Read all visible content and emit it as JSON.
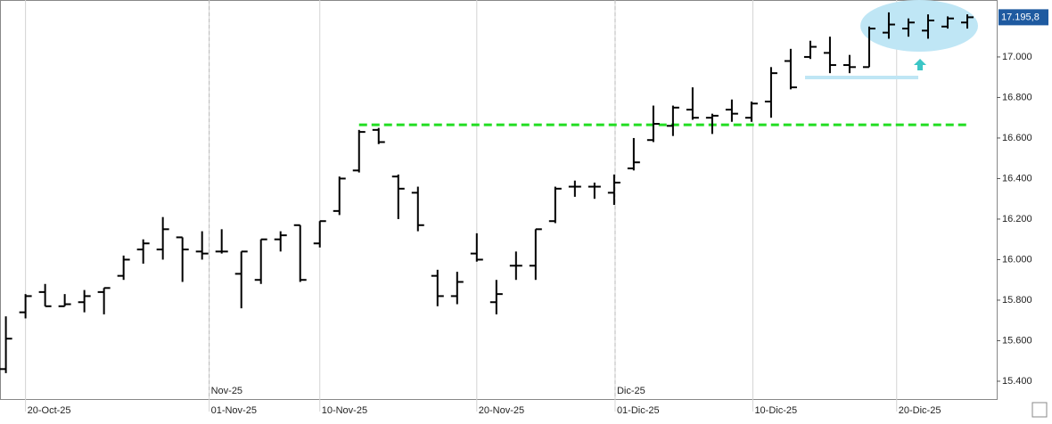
{
  "chart_data": {
    "type": "ohlc",
    "x": [
      0,
      1,
      2,
      3,
      4,
      5,
      6,
      7,
      8,
      9,
      10,
      11,
      12,
      13,
      14,
      15,
      16,
      17,
      18,
      19,
      20,
      21,
      22,
      23,
      24,
      25,
      26,
      27,
      28,
      29,
      30,
      31,
      32,
      33,
      34,
      35,
      36,
      37,
      38,
      39,
      40,
      41,
      42,
      43,
      44,
      45,
      46,
      47,
      48,
      49
    ],
    "open": [
      15460,
      15740,
      15840,
      15770,
      15790,
      15840,
      15920,
      16050,
      16050,
      16110,
      16040,
      16040,
      15930,
      15900,
      16100,
      16170,
      16080,
      16240,
      16440,
      16640,
      16410,
      16330,
      15920,
      15820,
      16030,
      15790,
      15970,
      15970,
      16190,
      16360,
      16360,
      16330,
      16450,
      16590,
      16660,
      16740,
      16700,
      16740,
      16700,
      16780,
      16980,
      17000,
      17020,
      16960,
      16950,
      17120,
      17140,
      17130,
      17150,
      17170
    ],
    "high": [
      15720,
      15830,
      15880,
      15830,
      15850,
      15860,
      16020,
      16100,
      16210,
      16110,
      16140,
      16150,
      16040,
      16100,
      16140,
      16170,
      16190,
      16410,
      16640,
      16650,
      16420,
      16360,
      15950,
      15940,
      16130,
      15900,
      16040,
      16150,
      16360,
      16390,
      16380,
      16420,
      16600,
      16760,
      16760,
      16850,
      16720,
      16790,
      16780,
      16950,
      17040,
      17080,
      17100,
      17010,
      17150,
      17220,
      17190,
      17210,
      17200,
      17210
    ],
    "low": [
      15440,
      15710,
      15770,
      15770,
      15740,
      15730,
      15900,
      15980,
      16000,
      15890,
      16000,
      16030,
      15760,
      15880,
      16040,
      15890,
      16060,
      16220,
      16430,
      16570,
      16200,
      16140,
      15770,
      15780,
      15990,
      15730,
      15900,
      15900,
      16180,
      16310,
      16300,
      16270,
      16440,
      16580,
      16610,
      16690,
      16620,
      16680,
      16680,
      16700,
      16840,
      16990,
      16920,
      16920,
      16950,
      17090,
      17100,
      17090,
      17140,
      17140
    ],
    "close": [
      15610,
      15820,
      15770,
      15780,
      15820,
      15860,
      16000,
      16080,
      16150,
      16050,
      16030,
      16040,
      16040,
      16100,
      16120,
      15900,
      16190,
      16400,
      16630,
      16580,
      16350,
      16170,
      15820,
      15890,
      16000,
      15830,
      15970,
      16150,
      16350,
      16360,
      16360,
      16380,
      16480,
      16670,
      16750,
      16700,
      16710,
      16720,
      16770,
      16920,
      16850,
      17050,
      16960,
      16950,
      17140,
      17160,
      17170,
      17180,
      17190,
      17195.8
    ],
    "color": "#000000",
    "xlim": [
      -0.3,
      50.5
    ],
    "xticks": [
      {
        "value": 1,
        "label": "20-Oct-25"
      },
      {
        "value": 10.36,
        "label": "01-Nov-25"
      },
      {
        "value": 16,
        "label": "10-Nov-25"
      },
      {
        "value": 24,
        "label": "20-Nov-25"
      },
      {
        "value": 31.05,
        "label": "01-Dic-25"
      },
      {
        "value": 38.07,
        "label": "10-Dic-25"
      },
      {
        "value": 45.4,
        "label": "20-Dic-25"
      }
    ],
    "month_ticks": [
      {
        "value": 10.36,
        "label": "Nov-25"
      },
      {
        "value": 31.05,
        "label": "Dic-25"
      }
    ],
    "ylim": [
      15312,
      17281
    ],
    "yticks": [
      {
        "value": 15400,
        "label": "15.400"
      },
      {
        "value": 15600,
        "label": "15.600"
      },
      {
        "value": 15800,
        "label": "15.800"
      },
      {
        "value": 16000,
        "label": "16.000"
      },
      {
        "value": 16200,
        "label": "16.200"
      },
      {
        "value": 16400,
        "label": "16.400"
      },
      {
        "value": 16600,
        "label": "16.600"
      },
      {
        "value": 16800,
        "label": "16.800"
      },
      {
        "value": 17000,
        "label": "17.000"
      }
    ],
    "last_value": {
      "value": 17195.8,
      "label": "17.195,8",
      "color": "#1e5aa0"
    },
    "reference_line": {
      "value": 16665,
      "color": "#22dd22",
      "from": 18,
      "to": 49
    }
  }
}
